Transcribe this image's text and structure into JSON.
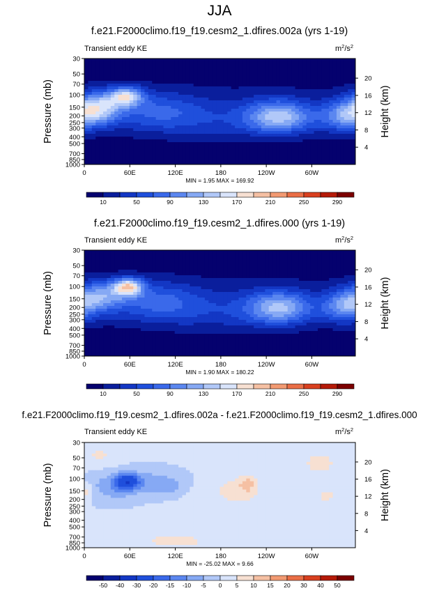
{
  "figure": {
    "title": "JJA"
  },
  "chart_data": [
    {
      "type": "heatmap",
      "title": "f.e21.F2000climo.f19_f19.cesm2_1.dfires.002a (yrs 1-19)",
      "subtitle": "Transient eddy KE",
      "units_base": "m",
      "units_exp1": "2",
      "units_mid": "/s",
      "units_exp2": "2",
      "ylabel": "Pressure (mb)",
      "y2label": "Height (km)",
      "xticks": [
        "0",
        "60E",
        "120E",
        "180",
        "120W",
        "60W"
      ],
      "xtick_lon": [
        0,
        60,
        120,
        180,
        240,
        300
      ],
      "yticks": [
        "30",
        "50",
        "70",
        "100",
        "150",
        "200",
        "250",
        "300",
        "400",
        "500",
        "700",
        "850",
        "1000"
      ],
      "ytick_p": [
        30,
        50,
        70,
        100,
        150,
        200,
        250,
        300,
        400,
        500,
        700,
        850,
        1000
      ],
      "y2ticks": [
        "20",
        "16",
        "12",
        "8",
        "4"
      ],
      "y2tick_km": [
        20,
        16,
        12,
        8,
        4
      ],
      "ylim": [
        1000,
        30
      ],
      "xlim": [
        0,
        357.5
      ],
      "stats_text": "MIN =   1.95  MAX = 169.92",
      "min": 1.95,
      "max": 169.92,
      "colorbar_labels": [
        "10",
        "50",
        "90",
        "130",
        "170",
        "210",
        "250",
        "290"
      ],
      "colorbar_colors": [
        "#05016e",
        "#0a1e9c",
        "#1337c4",
        "#1f4fdc",
        "#3a69ea",
        "#5b87f0",
        "#86a9f4",
        "#b1c8f8",
        "#d9e4fb",
        "#f7e0d2",
        "#f5c0a3",
        "#f29a72",
        "#ea6e46",
        "#d9401f",
        "#b51a08",
        "#7c0000"
      ],
      "ridges": [
        {
          "lon": 18,
          "p": 150,
          "amp": 125,
          "dlon": 22,
          "dlogp": 0.16
        },
        {
          "lon": 55,
          "p": 105,
          "amp": 130,
          "dlon": 16,
          "dlogp": 0.1
        },
        {
          "lon": 95,
          "p": 170,
          "amp": 55,
          "dlon": 40,
          "dlogp": 0.2
        },
        {
          "lon": 258,
          "p": 205,
          "amp": 120,
          "dlon": 30,
          "dlogp": 0.17
        },
        {
          "lon": 345,
          "p": 200,
          "amp": 95,
          "dlon": 24,
          "dlogp": 0.16
        },
        {
          "lon": 180,
          "p": 230,
          "amp": 30,
          "dlon": 60,
          "dlogp": 0.25
        }
      ]
    },
    {
      "type": "heatmap",
      "title": "f.e21.F2000climo.f19_f19.cesm2_1.dfires.000 (yrs 1-19)",
      "subtitle": "Transient eddy KE",
      "units_base": "m",
      "units_exp1": "2",
      "units_mid": "/s",
      "units_exp2": "2",
      "ylabel": "Pressure (mb)",
      "y2label": "Height (km)",
      "xticks": [
        "0",
        "60E",
        "120E",
        "180",
        "120W",
        "60W"
      ],
      "xtick_lon": [
        0,
        60,
        120,
        180,
        240,
        300
      ],
      "yticks": [
        "30",
        "50",
        "70",
        "100",
        "150",
        "200",
        "250",
        "300",
        "400",
        "500",
        "700",
        "850",
        "1000"
      ],
      "ytick_p": [
        30,
        50,
        70,
        100,
        150,
        200,
        250,
        300,
        400,
        500,
        700,
        850,
        1000
      ],
      "y2ticks": [
        "20",
        "16",
        "12",
        "8",
        "4"
      ],
      "y2tick_km": [
        20,
        16,
        12,
        8,
        4
      ],
      "ylim": [
        1000,
        30
      ],
      "xlim": [
        0,
        357.5
      ],
      "stats_text": "MIN =   1.90  MAX = 180.22",
      "min": 1.9,
      "max": 180.22,
      "colorbar_labels": [
        "10",
        "50",
        "90",
        "130",
        "170",
        "210",
        "250",
        "290"
      ],
      "colorbar_colors": [
        "#05016e",
        "#0a1e9c",
        "#1337c4",
        "#1f4fdc",
        "#3a69ea",
        "#5b87f0",
        "#86a9f4",
        "#b1c8f8",
        "#d9e4fb",
        "#f7e0d2",
        "#f5c0a3",
        "#f29a72",
        "#ea6e46",
        "#d9401f",
        "#b51a08",
        "#7c0000"
      ],
      "ridges": [
        {
          "lon": 22,
          "p": 135,
          "amp": 95,
          "dlon": 24,
          "dlogp": 0.15
        },
        {
          "lon": 58,
          "p": 100,
          "amp": 150,
          "dlon": 14,
          "dlogp": 0.09
        },
        {
          "lon": 95,
          "p": 160,
          "amp": 60,
          "dlon": 40,
          "dlogp": 0.2
        },
        {
          "lon": 258,
          "p": 200,
          "amp": 115,
          "dlon": 30,
          "dlogp": 0.17
        },
        {
          "lon": 345,
          "p": 190,
          "amp": 100,
          "dlon": 22,
          "dlogp": 0.16
        },
        {
          "lon": 180,
          "p": 230,
          "amp": 30,
          "dlon": 60,
          "dlogp": 0.25
        }
      ]
    },
    {
      "type": "heatmap",
      "title": "f.e21.F2000climo.f19_f19.cesm2_1.dfires.002a - f.e21.F2000climo.f19_f19.cesm2_1.dfires.000",
      "subtitle": "Transient eddy KE",
      "units_base": "m",
      "units_exp1": "2",
      "units_mid": "/s",
      "units_exp2": "2",
      "ylabel": "Pressure (mb)",
      "y2label": "Height (km)",
      "xticks": [
        "0",
        "60E",
        "120E",
        "180",
        "120W",
        "60W"
      ],
      "xtick_lon": [
        0,
        60,
        120,
        180,
        240,
        300
      ],
      "yticks": [
        "30",
        "50",
        "70",
        "100",
        "150",
        "200",
        "250",
        "300",
        "400",
        "500",
        "700",
        "850",
        "1000"
      ],
      "ytick_p": [
        30,
        50,
        70,
        100,
        150,
        200,
        250,
        300,
        400,
        500,
        700,
        850,
        1000
      ],
      "y2ticks": [
        "20",
        "16",
        "12",
        "8",
        "4"
      ],
      "y2tick_km": [
        20,
        16,
        12,
        8,
        4
      ],
      "ylim": [
        1000,
        30
      ],
      "xlim": [
        0,
        357.5
      ],
      "stats_text": "MIN = -25.02  MAX =   9.66",
      "min": -25.02,
      "max": 9.66,
      "colorbar_labels": [
        "-50",
        "-40",
        "-30",
        "-20",
        "-15",
        "-10",
        "-5",
        "0",
        "5",
        "10",
        "15",
        "20",
        "30",
        "40",
        "50"
      ],
      "colorbar_colors": [
        "#05016e",
        "#0a1e9c",
        "#1337c4",
        "#1f4fdc",
        "#3a69ea",
        "#5b87f0",
        "#86a9f4",
        "#b1c8f8",
        "#d9e4fb",
        "#f7e0d2",
        "#f5c0a3",
        "#f29a72",
        "#ea6e46",
        "#d9401f",
        "#b51a08",
        "#7c0000"
      ],
      "ridges": [
        {
          "lon": 57,
          "p": 110,
          "amp": -22,
          "dlon": 10,
          "dlogp": 0.08
        },
        {
          "lon": 40,
          "p": 130,
          "amp": -9,
          "dlon": 24,
          "dlogp": 0.14
        },
        {
          "lon": 90,
          "p": 110,
          "amp": -7,
          "dlon": 28,
          "dlogp": 0.12
        },
        {
          "lon": 110,
          "p": 135,
          "amp": -5,
          "dlon": 14,
          "dlogp": 0.08
        },
        {
          "lon": 3,
          "p": 150,
          "amp": 7,
          "dlon": 6,
          "dlogp": 0.09
        },
        {
          "lon": 215,
          "p": 120,
          "amp": 8,
          "dlon": 8,
          "dlogp": 0.09
        },
        {
          "lon": 200,
          "p": 150,
          "amp": 6,
          "dlon": 30,
          "dlogp": 0.18
        },
        {
          "lon": 310,
          "p": 60,
          "amp": 6,
          "dlon": 20,
          "dlogp": 0.15
        },
        {
          "lon": 120,
          "p": 800,
          "amp": 6,
          "dlon": 40,
          "dlogp": 0.1
        },
        {
          "lon": 20,
          "p": 45,
          "amp": 5,
          "dlon": 18,
          "dlogp": 0.12
        },
        {
          "lon": 320,
          "p": 180,
          "amp": 5,
          "dlon": 18,
          "dlogp": 0.12
        }
      ]
    }
  ]
}
